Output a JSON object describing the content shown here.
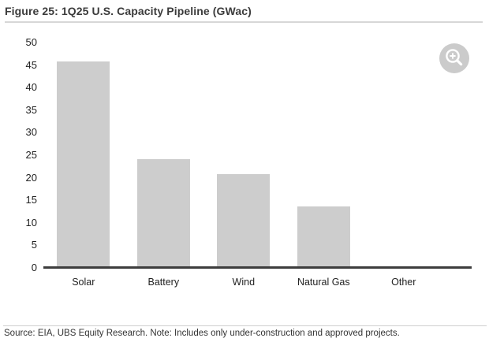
{
  "figure": {
    "title": "Figure 25: 1Q25 U.S. Capacity Pipeline (GWac)",
    "source_note": "Source: EIA, UBS Equity Research. Note: Includes only under-construction and approved projects."
  },
  "toolbar": {
    "zoom_icon": "magnifier-plus-icon"
  },
  "colors": {
    "bar": "#cdcdcd",
    "axis_line": "#3d3d3d",
    "title_text": "#3b3b3b",
    "tick_text": "#222222",
    "footer_text": "#333333",
    "divider": "#d7d7d7",
    "zoom_button_bg": "#cbcbcb"
  },
  "chart_data": {
    "type": "bar",
    "title": "1Q25 U.S. Capacity Pipeline (GWac)",
    "categories": [
      "Solar",
      "Battery",
      "Wind",
      "Natural Gas",
      "Other"
    ],
    "values": [
      45.8,
      24.1,
      20.8,
      13.6,
      0.2
    ],
    "xlabel": "",
    "ylabel": "",
    "ylim": [
      0,
      50
    ],
    "ytick_step": 5,
    "yticks": [
      0,
      5,
      10,
      15,
      20,
      25,
      30,
      35,
      40,
      45,
      50
    ],
    "grid": false,
    "legend": null,
    "bar_color": "#cdcdcd"
  }
}
